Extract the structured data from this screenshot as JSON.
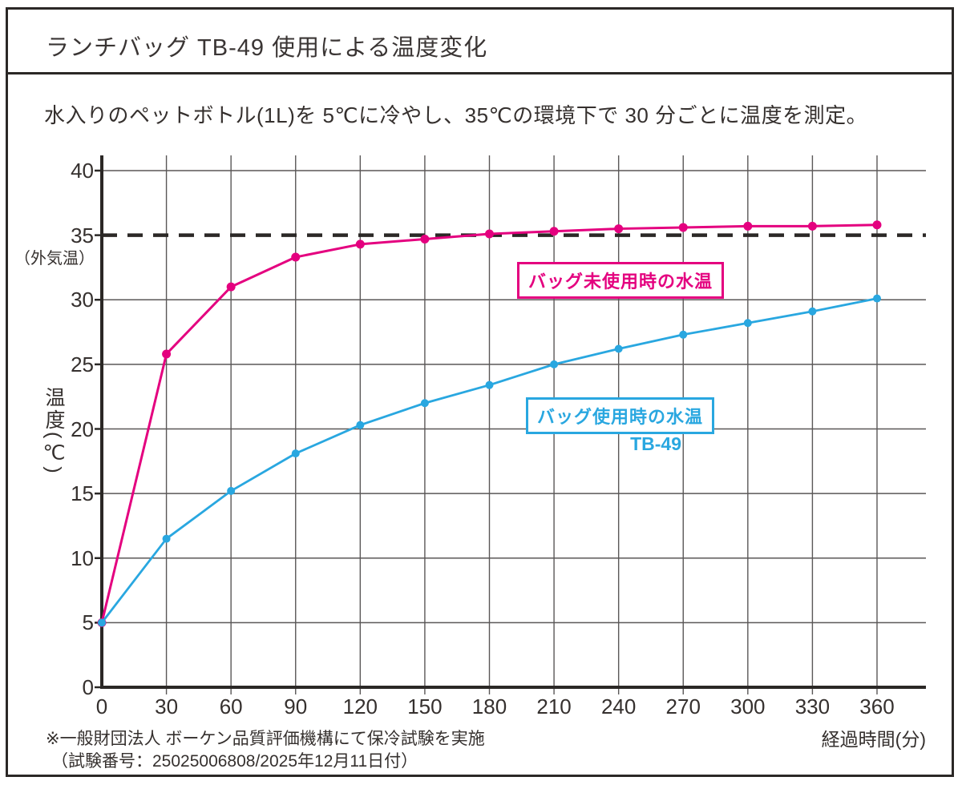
{
  "title": "ランチバッグ TB-49 使用による温度変化",
  "subtitle": "水入りのペットボトル(1L)を 5℃に冷やし、35℃の環境下で 30 分ごとに温度を測定。",
  "labels": {
    "y_axis": "温度(℃)",
    "x_axis": "経過時間(分)",
    "ambient": "（外気温）",
    "series_unused": "バッグ未使用時の水温",
    "series_used": "バッグ使用時の水温",
    "series_used_model": "TB-49"
  },
  "footer": {
    "note1": "※一般財団法人 ボーケン品質評価機構にて保冷試験を実施",
    "note2": "（試験番号：25025006808/2025年12月11日付）"
  },
  "colors": {
    "unused_series": "#e4007f",
    "used_series": "#29a7e0",
    "grid": "#5a5757",
    "axis": "#2b2826",
    "ambient_line": "#2b2826",
    "text": "#35302e"
  },
  "chart_data": {
    "type": "line",
    "title": "ランチバッグ TB-49 使用による温度変化",
    "xlabel": "経過時間(分)",
    "ylabel": "温度(℃)",
    "x": [
      0,
      30,
      60,
      90,
      120,
      150,
      180,
      210,
      240,
      270,
      300,
      330,
      360
    ],
    "y_ticks": [
      0,
      5,
      10,
      15,
      20,
      25,
      30,
      35,
      40
    ],
    "ylim": [
      0,
      40
    ],
    "xlim": [
      0,
      360
    ],
    "grid": true,
    "legend_position": "inline-annotation-boxes",
    "reference_line": {
      "value": 35,
      "label": "（外気温）",
      "style": "dashed"
    },
    "series": [
      {
        "name": "バッグ未使用時の水温",
        "color": "#e4007f",
        "values": [
          5.0,
          25.8,
          31.0,
          33.3,
          34.3,
          34.7,
          35.1,
          35.3,
          35.5,
          35.6,
          35.7,
          35.7,
          35.8
        ]
      },
      {
        "name": "バッグ使用時の水温(TB-49)",
        "color": "#29a7e0",
        "values": [
          5.0,
          11.5,
          15.2,
          18.1,
          20.3,
          22.0,
          23.4,
          25.0,
          26.2,
          27.3,
          28.2,
          29.1,
          30.1
        ]
      }
    ]
  }
}
